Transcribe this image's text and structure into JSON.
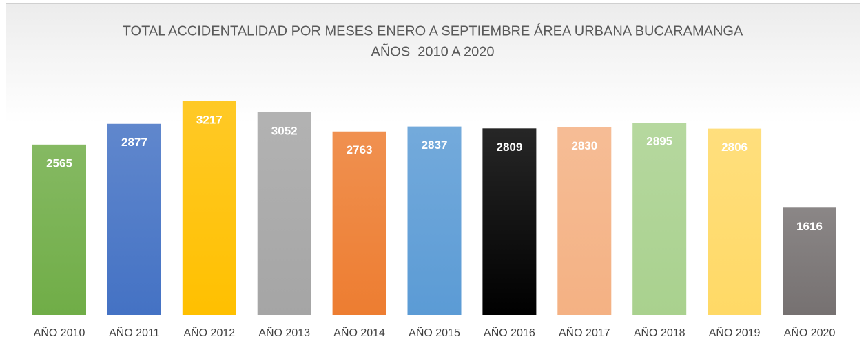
{
  "chart_data": {
    "type": "bar",
    "title": [
      "TOTAL ACCIDENTALIDAD POR MESES ENERO A SEPTIEMBRE ÁREA URBANA BUCARAMANGA",
      "AÑOS  2010 A 2020"
    ],
    "categories": [
      "AÑO 2010",
      "AÑO 2011",
      "AÑO 2012",
      "AÑO 2013",
      "AÑO 2014",
      "AÑO 2015",
      "AÑO 2016",
      "AÑO 2017",
      "AÑO 2018",
      "AÑO 2019",
      "AÑO 2020"
    ],
    "values": [
      2565,
      2877,
      3217,
      3052,
      2763,
      2837,
      2809,
      2830,
      2895,
      2806,
      1616
    ],
    "colors": [
      "#70ad47",
      "#4472c4",
      "#ffc000",
      "#a5a5a5",
      "#ed7d31",
      "#5b9bd5",
      "#000000",
      "#f4b183",
      "#a9d18e",
      "#ffd966",
      "#767171"
    ],
    "data_labels": true
  }
}
